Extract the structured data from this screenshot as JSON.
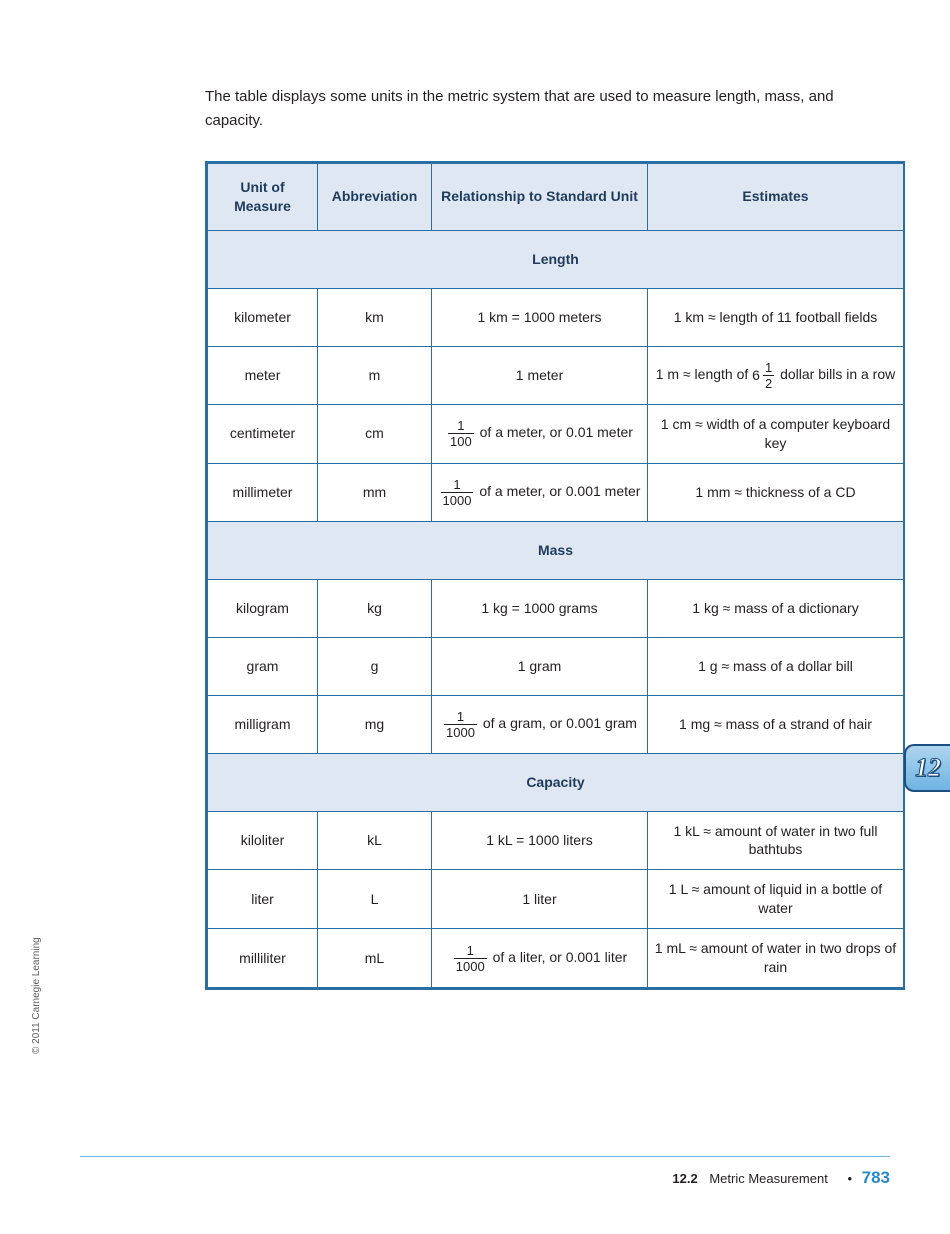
{
  "intro": "The table displays some units in the metric system that are used to measure length, mass, and capacity.",
  "headers": {
    "unit": "Unit of Measure",
    "abbr": "Abbreviation",
    "rel": "Relationship to Standard Unit",
    "est": "Estimates"
  },
  "sections": {
    "length": "Length",
    "mass": "Mass",
    "capacity": "Capacity"
  },
  "rows": {
    "km": {
      "unit": "kilometer",
      "abbr": "km",
      "rel_plain": "1 km = 1000 meters",
      "est_plain": "1 km ≈ length of 11 football fields"
    },
    "m": {
      "unit": "meter",
      "abbr": "m",
      "rel_plain": "1 meter",
      "est_prefix": "1 m ≈ length of ",
      "est_whole": "6",
      "est_num": "1",
      "est_den": "2",
      "est_suffix": " dollar bills in a row"
    },
    "cm": {
      "unit": "centimeter",
      "abbr": "cm",
      "rel_num": "1",
      "rel_den": "100",
      "rel_suffix": " of a meter, or 0.01 meter",
      "est_plain": "1 cm ≈ width of a computer keyboard key"
    },
    "mm": {
      "unit": "millimeter",
      "abbr": "mm",
      "rel_num": "1",
      "rel_den": "1000",
      "rel_suffix": " of a meter, or 0.001 meter",
      "est_plain": "1 mm ≈ thickness of a CD"
    },
    "kg": {
      "unit": "kilogram",
      "abbr": "kg",
      "rel_plain": "1 kg = 1000 grams",
      "est_plain": "1 kg ≈ mass of a dictionary"
    },
    "g": {
      "unit": "gram",
      "abbr": "g",
      "rel_plain": "1 gram",
      "est_plain": "1 g ≈ mass of a dollar bill"
    },
    "mg": {
      "unit": "milligram",
      "abbr": "mg",
      "rel_num": "1",
      "rel_den": "1000",
      "rel_suffix": " of a gram, or 0.001 gram",
      "est_plain": "1 mg ≈ mass of a strand of hair"
    },
    "kL": {
      "unit": "kiloliter",
      "abbr": "kL",
      "rel_plain": "1 kL = 1000 liters",
      "est_plain": "1 kL ≈ amount of water in two full bathtubs"
    },
    "L": {
      "unit": "liter",
      "abbr": "L",
      "rel_plain": "1 liter",
      "est_plain": "1 L ≈ amount of liquid in a bottle of water"
    },
    "mL": {
      "unit": "milliliter",
      "abbr": "mL",
      "rel_num": "1",
      "rel_den": "1000",
      "rel_suffix": " of a liter, or 0.001 liter",
      "est_plain": "1 mL ≈ amount of water in two drops of rain"
    }
  },
  "copyright": "© 2011 Carnegie Learning",
  "chapter_tab": "12",
  "footer": {
    "section": "12.2",
    "title": "Metric Measurement",
    "dot": "•",
    "page": "783"
  },
  "colors": {
    "table_border": "#2a6ea6",
    "header_bg": "#dfe8f2",
    "header_text": "#1f3b5c",
    "body_text": "#231f20",
    "footer_rule": "#6fb4e3",
    "page_num": "#2a8ac9",
    "tab_border": "#1a4f80",
    "tab_grad_top": "#aed4ef",
    "tab_grad_bottom": "#6fb4e3"
  }
}
